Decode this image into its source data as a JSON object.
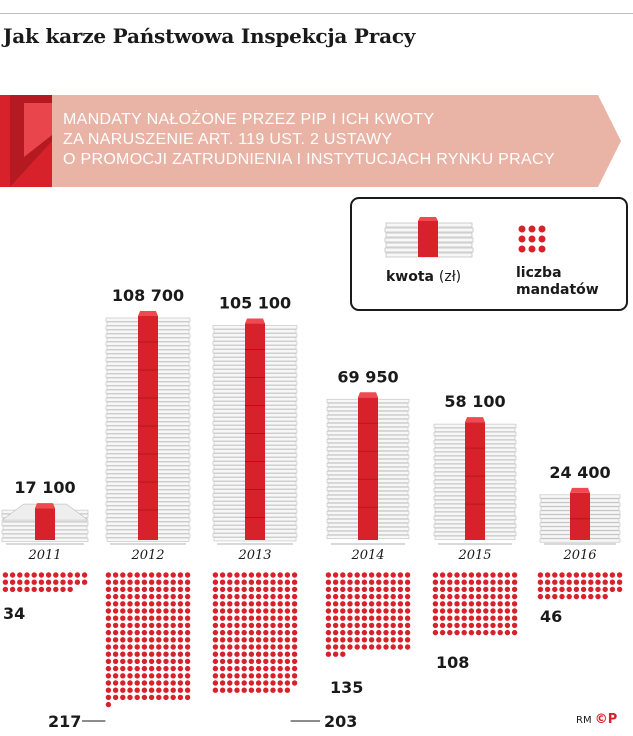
{
  "title": "Jak karze Państwowa Inspekcja Pracy",
  "banner_lines": [
    "MANDATY NAŁOŻONE PRZEZ PIP I ICH KWOTY",
    "ZA NARUSZENIE ART. 119 UST. 2 USTAWY",
    "O PROMOCJI ZATRUDNIENIA I INSTYTUCJACH RYNKU PRACY"
  ],
  "legend": {
    "amount_label": "kwota",
    "amount_unit": "(zł)",
    "count_label_line1": "liczba",
    "count_label_line2": "mandatów"
  },
  "footer": {
    "initials": "RM",
    "logo": "©P"
  },
  "colors": {
    "accent_red": "#d7222b",
    "banner_pink": "#e9b3a5",
    "paper_gray": "#cfcfcf",
    "dark_text": "#1a1a1a"
  },
  "chart_data": {
    "type": "bar",
    "categories": [
      "2011",
      "2012",
      "2013",
      "2014",
      "2015",
      "2016"
    ],
    "series": [
      {
        "name": "kwota (zł)",
        "values": [
          17100,
          108700,
          105100,
          69950,
          58100,
          24400
        ]
      },
      {
        "name": "liczba mandatów",
        "values": [
          34,
          217,
          203,
          135,
          108,
          46
        ]
      }
    ],
    "amount_labels": [
      "17 100",
      "108 700",
      "105 100",
      "69 950",
      "58 100",
      "24 400"
    ],
    "count_labels": [
      "34",
      "217",
      "203",
      "135",
      "108",
      "46"
    ]
  }
}
